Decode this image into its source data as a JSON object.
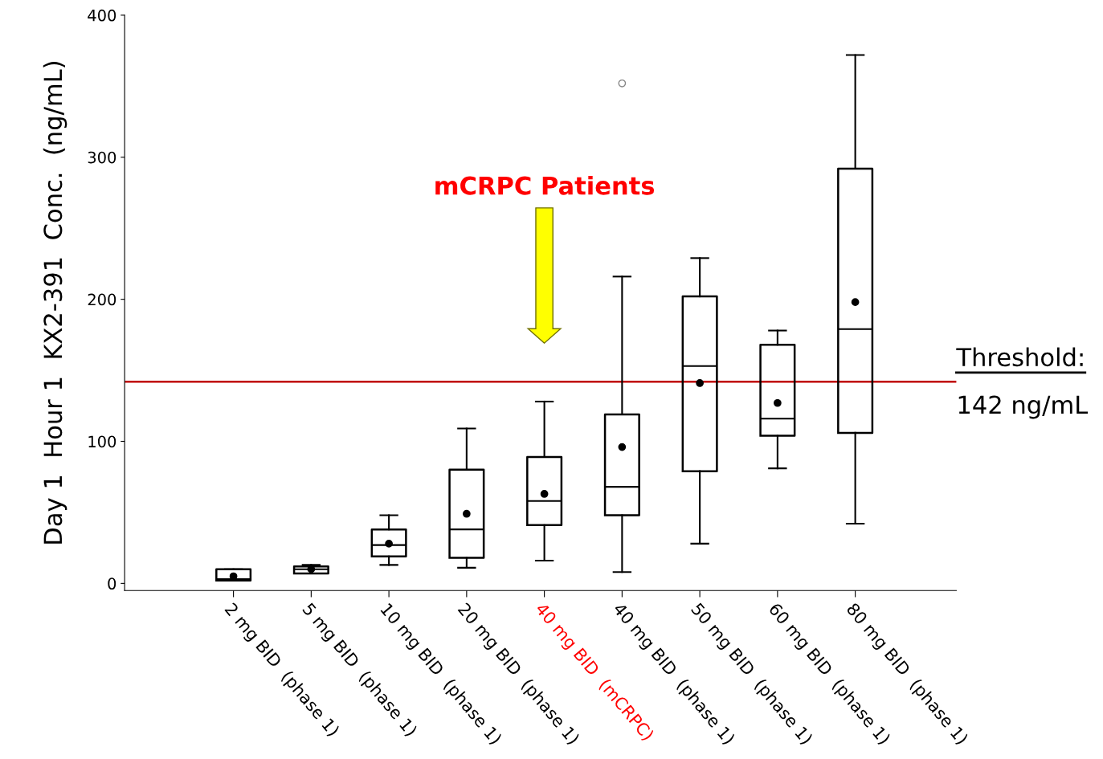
{
  "chart_data": {
    "type": "box",
    "ylabel": "Day 1  Hour 1  KX2-391  Conc.  (ng/mL)",
    "categories": [
      "2 mg BID  (phase 1)",
      "5 mg BID  (phase 1)",
      "10 mg BID  (phase 1)",
      "20 mg BID  (phase 1)",
      "40 mg BID  (mCRPC)",
      "40 mg BID  (phase 1)",
      "50 mg BID  (phase 1)",
      "60 mg BID  (phase 1)",
      "80 mg BID  (phase 1)"
    ],
    "boxes": [
      {
        "low": 2,
        "q1": 2,
        "median": 3,
        "q3": 10,
        "high": 10,
        "mean": 5
      },
      {
        "low": 7,
        "q1": 7,
        "median": 10,
        "q3": 12,
        "high": 13,
        "mean": 10
      },
      {
        "low": 13,
        "q1": 19,
        "median": 27,
        "q3": 38,
        "high": 48,
        "mean": 28
      },
      {
        "low": 11,
        "q1": 18,
        "median": 38,
        "q3": 80,
        "high": 109,
        "mean": 49
      },
      {
        "low": 16,
        "q1": 41,
        "median": 58,
        "q3": 89,
        "high": 128,
        "mean": 63
      },
      {
        "low": 8,
        "q1": 48,
        "median": 68,
        "q3": 119,
        "high": 216,
        "mean": 96,
        "outliers": [
          352
        ]
      },
      {
        "low": 28,
        "q1": 79,
        "median": 153,
        "q3": 202,
        "high": 229,
        "mean": 141
      },
      {
        "low": 81,
        "q1": 104,
        "median": 116,
        "q3": 168,
        "high": 178,
        "mean": 127
      },
      {
        "low": 42,
        "q1": 106,
        "median": 179,
        "q3": 292,
        "high": 372,
        "mean": 198
      }
    ],
    "ylim": [
      -5,
      400
    ],
    "yticks": [
      0,
      100,
      200,
      300,
      400
    ],
    "ref_lines": [
      {
        "axis": "y",
        "value": 142,
        "label": "Threshold:\n142 ng/mL",
        "color": "#c00000"
      }
    ],
    "annotations": [
      "mCRPC Patients"
    ],
    "grid": false,
    "legend": false
  }
}
